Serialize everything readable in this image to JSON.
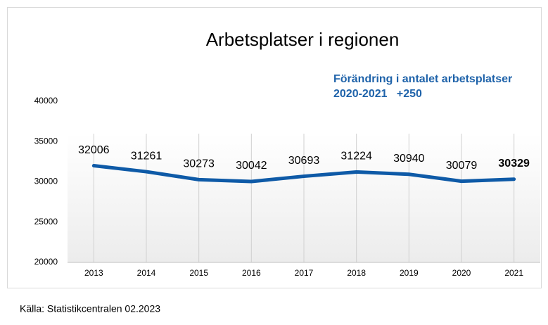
{
  "chart_data": {
    "type": "line",
    "title": "Arbetsplatser i regionen",
    "annotation": [
      "Förändring i antalet arbetsplatser",
      "2020-2021   +250"
    ],
    "source": "Källa: Statistikcentralen 02.2023",
    "categories": [
      "2013",
      "2014",
      "2015",
      "2016",
      "2017",
      "2018",
      "2019",
      "2020",
      "2021"
    ],
    "series": [
      {
        "name": "Arbetsplatser",
        "color": "#0e5aa7",
        "values": [
          32006,
          31261,
          30273,
          30042,
          30693,
          31224,
          30940,
          30079,
          30329
        ]
      }
    ],
    "ylim": [
      20000,
      40000
    ],
    "yticks": [
      20000,
      25000,
      30000,
      35000,
      40000
    ],
    "grid": false
  }
}
